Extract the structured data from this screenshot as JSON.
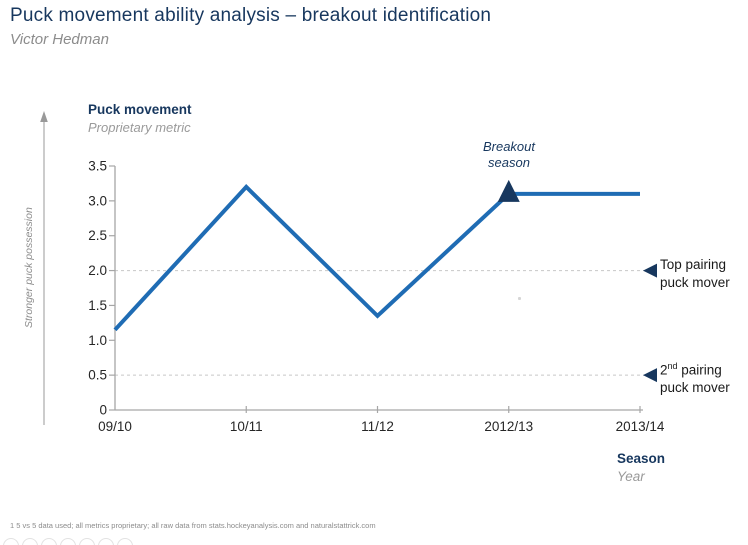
{
  "slide": {
    "title": "Puck movement ability analysis – breakout identification",
    "subtitle": "Victor Hedman",
    "footnote": "1 5 vs 5 data used; all metrics proprietary; all raw data from stats.hockeyanalysis.com and naturalstattrick.com"
  },
  "chart_data": {
    "type": "line",
    "title": "Puck movement",
    "subtitle": "Proprietary metric",
    "y_axis_direction_label": "Stronger puck possession",
    "categories": [
      "09/10",
      "10/11",
      "11/12",
      "2012/13",
      "2013/14"
    ],
    "series": [
      {
        "name": "Puck movement proprietary metric",
        "values": [
          1.15,
          3.2,
          1.35,
          3.1,
          3.1
        ]
      }
    ],
    "ylim": [
      0,
      3.5
    ],
    "yticks": [
      {
        "value": 0,
        "label": "0"
      },
      {
        "value": 0.5,
        "label": "0.5"
      },
      {
        "value": 1,
        "label": "1.0"
      },
      {
        "value": 1.5,
        "label": "1.5"
      },
      {
        "value": 2,
        "label": "2.0"
      },
      {
        "value": 2.5,
        "label": "2.5"
      },
      {
        "value": 3,
        "label": "3.0"
      },
      {
        "value": 3.5,
        "label": "3.5"
      }
    ],
    "grid": "horizontal dashed reference lines only",
    "legend": "none",
    "annotation": {
      "line1": "Breakout",
      "line2": "season",
      "category": "2012/13",
      "value": 3.1
    },
    "reference_lines": [
      {
        "value": 2.0,
        "label_line1": "Top pairing",
        "label_line2": "puck mover"
      },
      {
        "value": 0.5,
        "label_num": "2",
        "label_sup": "nd",
        "label_rest": " pairing",
        "label_line2": "puck mover"
      }
    ],
    "x_axis_title": "Season",
    "x_axis_subtitle": "Year",
    "colors": {
      "line": "#1F6CB4",
      "marker_navy": "#17375E",
      "axis": "#A6A6A6",
      "grid": "#C8C8C8",
      "tick_text": "#262626",
      "direction_arrow": "#999999"
    }
  }
}
